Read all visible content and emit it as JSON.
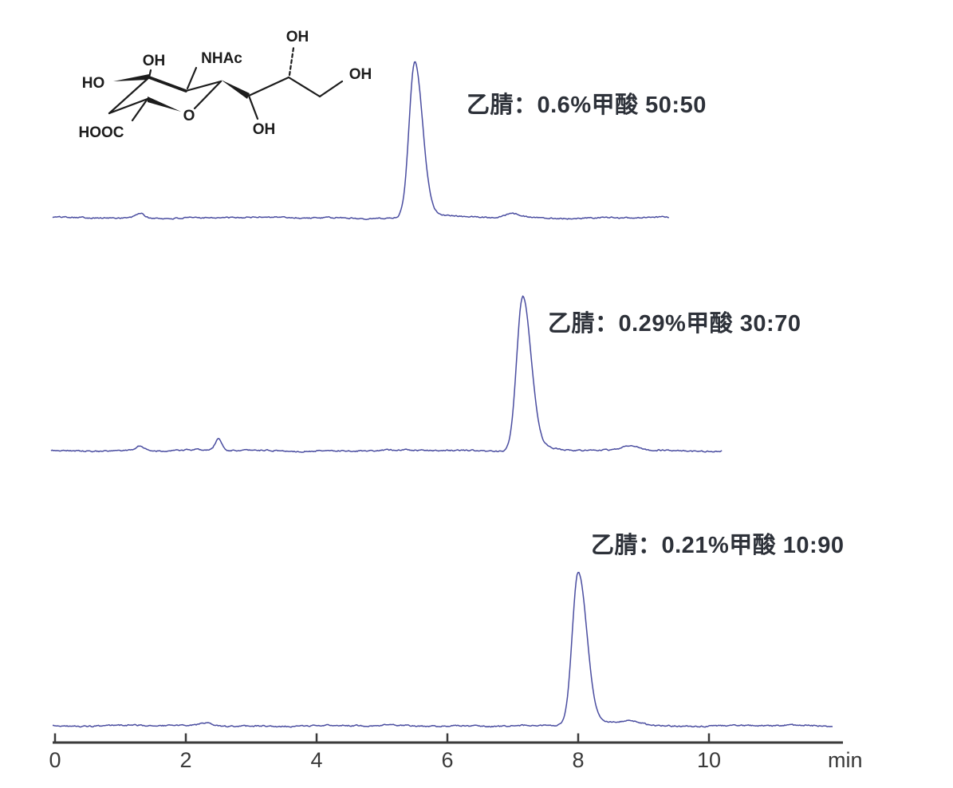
{
  "figure": {
    "background": "#ffffff",
    "trace_color": "#4a4da0",
    "axis_color": "#3b3b3b",
    "label_color": "#2d3139"
  },
  "structure": {
    "compound": "N-acetylneuraminic acid (sialic acid) skeletal structure",
    "labels": {
      "oh_ring_top": "OH",
      "nhac": "NHAc",
      "ho_left": "HO",
      "hooc": "HOOC",
      "ring_o": "O",
      "oh_chain_bottom": "OH",
      "oh_chain_top": "OH",
      "oh_terminal": "OH"
    }
  },
  "chart_data": [
    {
      "type": "line",
      "title": "乙腈：0.6%甲酸 50:50",
      "legend_position": "right-of-peak",
      "main_peak": {
        "rt_min": 5.5,
        "rel_height": 1.0,
        "sigma_left_min": 0.085,
        "sigma_right_min": 0.12
      },
      "minor_peaks": [
        {
          "rt_min": 1.3,
          "rel_height": 0.03,
          "width_min": 0.06
        },
        {
          "rt_min": 7.0,
          "rel_height": 0.028,
          "width_min": 0.13
        }
      ],
      "duration_min": 9.4
    },
    {
      "type": "line",
      "title": "乙腈：0.29%甲酸 30:70",
      "legend_position": "right-of-peak",
      "main_peak": {
        "rt_min": 7.15,
        "rel_height": 1.0,
        "sigma_left_min": 0.09,
        "sigma_right_min": 0.13
      },
      "minor_peaks": [
        {
          "rt_min": 1.3,
          "rel_height": 0.03,
          "width_min": 0.07
        },
        {
          "rt_min": 2.5,
          "rel_height": 0.075,
          "width_min": 0.05
        },
        {
          "rt_min": 8.8,
          "rel_height": 0.032,
          "width_min": 0.13
        }
      ],
      "duration_min": 10.2
    },
    {
      "type": "line",
      "title": "乙腈：0.21%甲酸 10:90",
      "legend_position": "above-peak",
      "main_peak": {
        "rt_min": 8.0,
        "rel_height": 1.0,
        "sigma_left_min": 0.09,
        "sigma_right_min": 0.13
      },
      "minor_peaks": [
        {
          "rt_min": 2.3,
          "rel_height": 0.018,
          "width_min": 0.08
        },
        {
          "rt_min": 8.8,
          "rel_height": 0.035,
          "width_min": 0.17
        }
      ],
      "duration_min": 11.9
    }
  ],
  "axis": {
    "tick_labels": [
      "0",
      "2",
      "4",
      "6",
      "8",
      "10"
    ],
    "tick_values_min": [
      0,
      2,
      4,
      6,
      8,
      10
    ],
    "unit": "min",
    "xlim_min": [
      0,
      12.05
    ],
    "grid": "off"
  }
}
